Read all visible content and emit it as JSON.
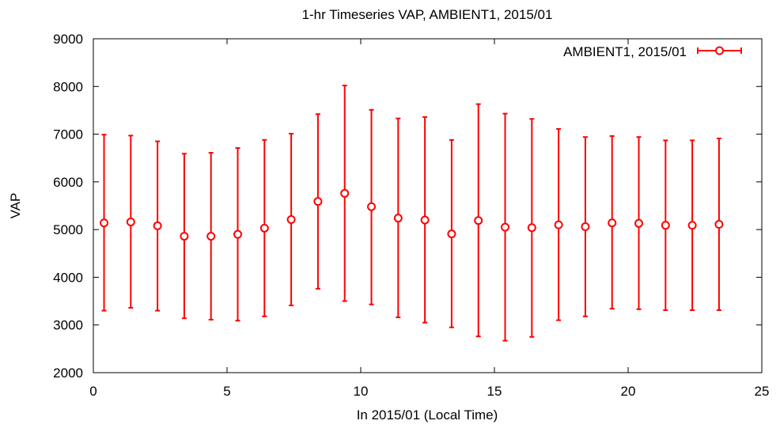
{
  "chart_data": {
    "type": "scatter",
    "title": "1-hr Timeseries VAP, AMBIENT1, 2015/01",
    "xlabel": "In 2015/01 (Local Time)",
    "ylabel": "VAP",
    "xlim": [
      0,
      25
    ],
    "ylim": [
      2000,
      9000
    ],
    "x_ticks": [
      0,
      5,
      10,
      15,
      20,
      25
    ],
    "y_ticks": [
      2000,
      3000,
      4000,
      5000,
      6000,
      7000,
      8000,
      9000
    ],
    "legend_position": "top-right",
    "grid": false,
    "series": [
      {
        "name": "AMBIENT1, 2015/01",
        "color": "#ff0000",
        "marker": "open-circle",
        "error_bars": true,
        "x": [
          0.4,
          1.4,
          2.4,
          3.4,
          4.4,
          5.4,
          6.4,
          7.4,
          8.4,
          9.4,
          10.4,
          11.4,
          12.4,
          13.4,
          14.4,
          15.4,
          16.4,
          17.4,
          18.4,
          19.4,
          20.4,
          21.4,
          22.4,
          23.4
        ],
        "y": [
          5140,
          5160,
          5080,
          4860,
          4860,
          4900,
          5030,
          5210,
          5590,
          5760,
          5480,
          5240,
          5200,
          4910,
          5190,
          5050,
          5040,
          5100,
          5060,
          5140,
          5130,
          5090,
          5090,
          5110
        ],
        "y_low": [
          3300,
          3360,
          3300,
          3140,
          3110,
          3090,
          3180,
          3410,
          3760,
          3500,
          3430,
          3160,
          3050,
          2950,
          2760,
          2670,
          2750,
          3100,
          3180,
          3340,
          3330,
          3310,
          3310,
          3310
        ],
        "y_high": [
          6990,
          6970,
          6850,
          6590,
          6610,
          6710,
          6880,
          7010,
          7420,
          8020,
          7510,
          7330,
          7360,
          6880,
          7630,
          7430,
          7320,
          7110,
          6940,
          6960,
          6940,
          6870,
          6870,
          6910
        ]
      }
    ]
  }
}
